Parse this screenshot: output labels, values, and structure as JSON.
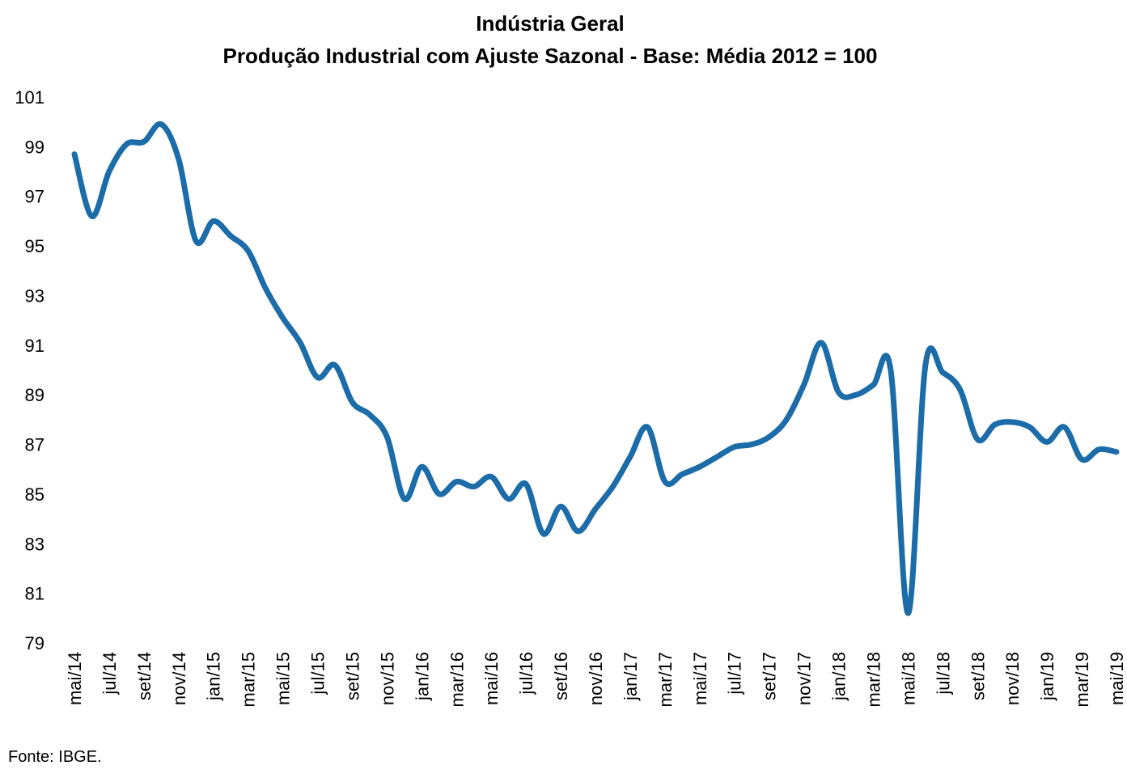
{
  "title": {
    "line1": "Indústria Geral",
    "line2": "Produção Industrial com Ajuste Sazonal - Base: Média 2012 = 100"
  },
  "source": "Fonte: IBGE.",
  "chart_data": {
    "type": "line",
    "title": "Indústria Geral",
    "subtitle": "Produção Industrial com Ajuste Sazonal - Base: Média 2012 = 100",
    "line_color": "#1B6CA8",
    "text_color": "#000000",
    "grid": false,
    "legend": "none",
    "smooth": true,
    "ylim": [
      79,
      101
    ],
    "y_ticks": [
      101,
      99,
      97,
      95,
      93,
      91,
      89,
      87,
      85,
      83,
      81,
      79
    ],
    "x_tick_step": 2,
    "x_tick_labels": [
      "mai/14",
      "jul/14",
      "set/14",
      "nov/14",
      "jan/15",
      "mar/15",
      "mai/15",
      "jul/15",
      "set/15",
      "nov/15",
      "jan/16",
      "mar/16",
      "mai/16",
      "jul/16",
      "set/16",
      "nov/16",
      "jan/17",
      "mar/17",
      "mai/17",
      "jul/17",
      "set/17",
      "nov/17",
      "jan/18",
      "mar/18",
      "mai/18",
      "jul/18",
      "set/18",
      "nov/18",
      "jan/19",
      "mar/19",
      "mai/19"
    ],
    "x": [
      "mai/14",
      "jun/14",
      "jul/14",
      "ago/14",
      "set/14",
      "out/14",
      "nov/14",
      "dez/14",
      "jan/15",
      "fev/15",
      "mar/15",
      "abr/15",
      "mai/15",
      "jun/15",
      "jul/15",
      "ago/15",
      "set/15",
      "out/15",
      "nov/15",
      "dez/15",
      "jan/16",
      "fev/16",
      "mar/16",
      "abr/16",
      "mai/16",
      "jun/16",
      "jul/16",
      "ago/16",
      "set/16",
      "out/16",
      "nov/16",
      "dez/16",
      "jan/17",
      "fev/17",
      "mar/17",
      "abr/17",
      "mai/17",
      "jun/17",
      "jul/17",
      "ago/17",
      "set/17",
      "out/17",
      "nov/17",
      "dez/17",
      "jan/18",
      "fev/18",
      "mar/18",
      "abr/18",
      "mai/18",
      "jun/18",
      "jul/18",
      "ago/18",
      "set/18",
      "out/18",
      "nov/18",
      "dez/18",
      "jan/19",
      "fev/19",
      "mar/19",
      "abr/19",
      "mai/19"
    ],
    "values": [
      98.7,
      96.2,
      98.0,
      99.1,
      99.2,
      99.9,
      98.5,
      95.2,
      96.0,
      95.4,
      94.8,
      93.3,
      92.1,
      91.1,
      89.7,
      90.2,
      88.7,
      88.2,
      87.3,
      84.8,
      86.1,
      85.0,
      85.5,
      85.3,
      85.7,
      84.8,
      85.4,
      83.4,
      84.5,
      83.5,
      84.4,
      85.3,
      86.5,
      87.7,
      85.5,
      85.8,
      86.1,
      86.5,
      86.9,
      87.0,
      87.3,
      88.0,
      89.4,
      91.1,
      89.1,
      89.0,
      89.4,
      90.0,
      80.2,
      90.2,
      89.9,
      89.2,
      87.2,
      87.8,
      87.9,
      87.7,
      87.1,
      87.7,
      86.4,
      86.8,
      86.7
    ]
  }
}
